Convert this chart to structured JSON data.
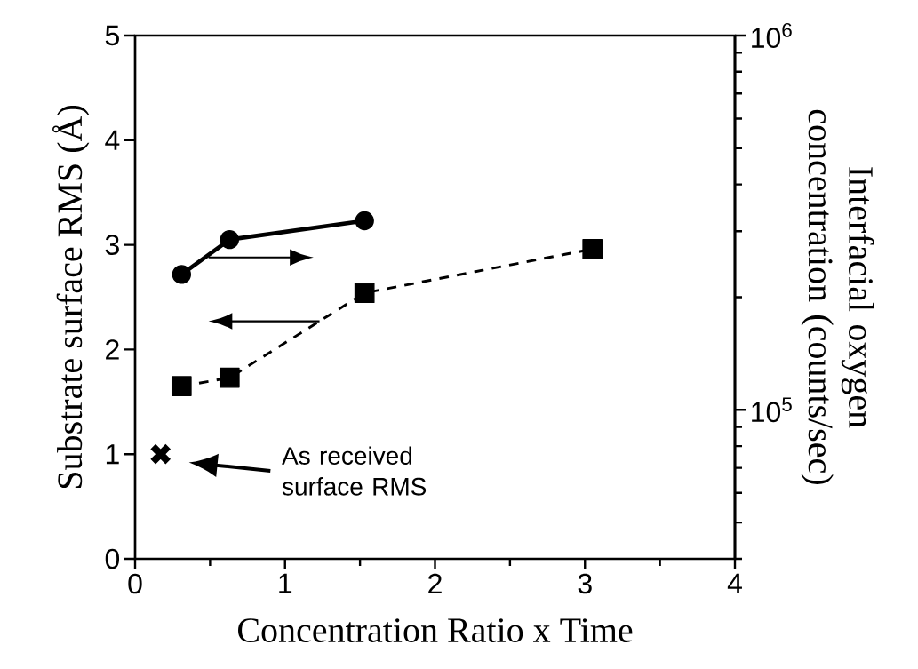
{
  "chart_data": {
    "type": "line",
    "xlabel": "Concentration Ratio x Time",
    "ylabel": "Substrate surface RMS (Å)",
    "y2label": "Interfacial oxygen concentration (counts/sec)",
    "xlim": [
      0,
      4
    ],
    "xticks": [
      0,
      1,
      2,
      3,
      4
    ],
    "ylim": [
      0,
      5
    ],
    "yticks": [
      0,
      1,
      2,
      3,
      4,
      5
    ],
    "y2lim": [
      40000,
      1000000
    ],
    "y2ticks": [
      {
        "value": 100000,
        "label": "10$^{5}$"
      },
      {
        "value": 1000000,
        "label": "10$^{6}$"
      }
    ],
    "log": "y2",
    "grid": false,
    "series": [
      {
        "axis": "y2",
        "color": "#000000",
        "marker": "circle",
        "line_style": "solid",
        "x": [
          0.31,
          0.63,
          1.53
        ],
        "values": [
          230000,
          285000,
          320000
        ]
      },
      {
        "color": "#000000",
        "marker": "square",
        "line_style": "dashed",
        "x": [
          0.31,
          0.63,
          1.53,
          3.05
        ],
        "values": [
          1.65,
          1.73,
          2.54,
          2.96
        ]
      },
      {
        "type": "scatter",
        "color": "#000000",
        "marker": "cross",
        "x": [
          0.17
        ],
        "values": [
          1.0
        ]
      }
    ],
    "annotations": [
      "As received surface RMS"
    ]
  }
}
